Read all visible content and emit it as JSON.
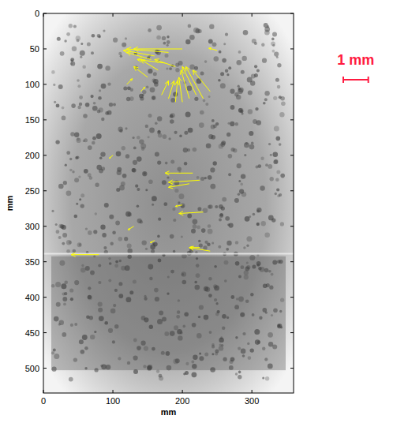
{
  "chart_data": {
    "type": "quiver",
    "xlabel": "mm",
    "ylabel": "mm",
    "xlim": [
      0,
      360
    ],
    "ylim": [
      0,
      535
    ],
    "xticks": [
      0,
      100,
      200,
      300
    ],
    "yticks": [
      0,
      50,
      100,
      150,
      200,
      250,
      300,
      350,
      400,
      450,
      500
    ],
    "color": "#ffff00",
    "x": [
      200,
      180,
      160,
      155,
      175,
      190,
      165,
      150,
      250,
      230,
      220,
      210,
      200,
      190,
      180,
      240,
      170,
      215,
      225,
      210,
      230,
      200,
      240,
      225,
      80,
      130,
      160,
      120,
      140,
      100
    ],
    "y": [
      50,
      55,
      60,
      65,
      70,
      75,
      80,
      90,
      52,
      120,
      115,
      120,
      125,
      125,
      120,
      110,
      115,
      225,
      235,
      240,
      280,
      270,
      335,
      330,
      340,
      300,
      320,
      100,
      110,
      200
    ],
    "u": [
      -70,
      -60,
      -45,
      -35,
      -40,
      -30,
      -25,
      -20,
      -12,
      -25,
      -20,
      -12,
      -5,
      3,
      8,
      -25,
      10,
      -40,
      -45,
      -30,
      -35,
      -10,
      -30,
      -15,
      -40,
      -8,
      -6,
      8,
      6,
      -5
    ],
    "v": [
      0,
      -5,
      -8,
      -10,
      -5,
      -10,
      -15,
      -15,
      -3,
      -45,
      -40,
      -40,
      -35,
      -30,
      -25,
      -30,
      -20,
      0,
      3,
      5,
      2,
      2,
      -5,
      0,
      0,
      5,
      3,
      -8,
      -6,
      4
    ],
    "scale_bar": {
      "label": "1 mm",
      "length": 36,
      "color": "#ff1a40"
    }
  }
}
